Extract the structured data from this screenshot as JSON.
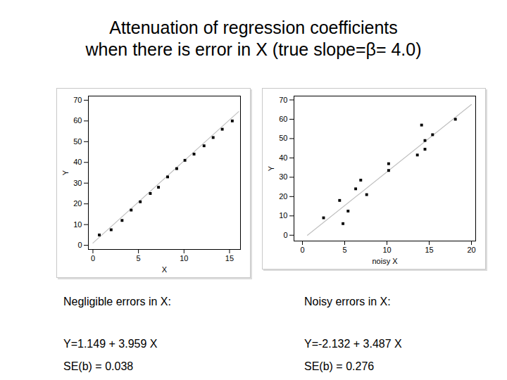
{
  "title": [
    "Attenuation of regression coefficients",
    "when there is error in X  (true slope=β= 4.0)"
  ],
  "chart_data": [
    {
      "type": "scatter",
      "xlabel": "X",
      "ylabel": "Y",
      "x": [
        0.7,
        2.0,
        3.2,
        4.2,
        5.2,
        6.3,
        7.2,
        8.2,
        9.2,
        10.1,
        11.1,
        12.2,
        13.2,
        14.2,
        15.3
      ],
      "values": [
        5,
        7.5,
        12,
        17,
        21,
        25,
        28,
        33,
        37,
        41,
        44,
        48,
        52,
        56,
        60
      ],
      "color": "#000000",
      "marker": "square",
      "fit": {
        "x": [
          0,
          16
        ],
        "values": [
          1.1,
          64.5
        ],
        "color": "#c0c0c0",
        "line_style": "solid"
      },
      "xlim": [
        -0.5,
        16.2
      ],
      "xticks": [
        0,
        5,
        10,
        15
      ],
      "ylim": [
        -2,
        72
      ],
      "yticks": [
        0,
        10,
        20,
        30,
        40,
        50,
        60,
        70
      ],
      "grid": false,
      "annotations": [
        "Negligible errors in X:",
        "Y=1.149 + 3.959 X",
        "SE(b) = 0.038"
      ]
    },
    {
      "type": "scatter",
      "xlabel": "noisy X",
      "ylabel": "Y",
      "x": [
        2.5,
        4.4,
        4.8,
        5.4,
        6.3,
        6.9,
        7.6,
        10.2,
        10.2,
        13.6,
        14.1,
        14.5,
        14.5,
        15.4,
        18.1
      ],
      "values": [
        9,
        18,
        6,
        12.5,
        24,
        28.5,
        21,
        37,
        33.5,
        41.5,
        57,
        49,
        44.5,
        52,
        60
      ],
      "color": "#000000",
      "marker": "square",
      "fit": {
        "x": [
          0.6,
          20
        ],
        "values": [
          0,
          67.6
        ],
        "color": "#c0c0c0",
        "line_style": "solid"
      },
      "xlim": [
        -1,
        20.5
      ],
      "xticks": [
        0,
        5,
        10,
        15,
        20
      ],
      "ylim": [
        -3,
        72
      ],
      "yticks": [
        0,
        10,
        20,
        30,
        40,
        50,
        60,
        70
      ],
      "grid": false,
      "annotations": [
        "Noisy errors in X:",
        "Y=-2.132 + 3.487 X",
        "SE(b) = 0.276"
      ]
    }
  ]
}
